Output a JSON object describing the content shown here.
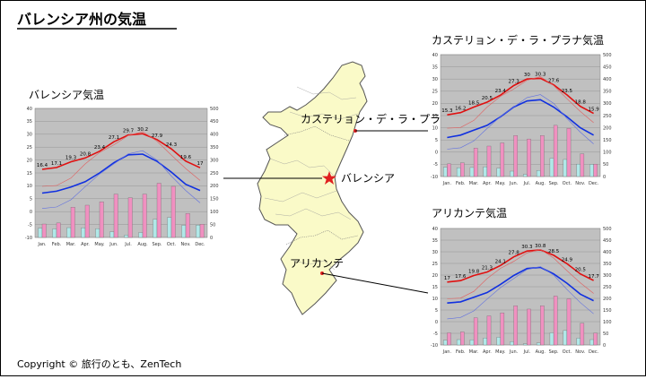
{
  "page": {
    "title": "バレンシア州の気温",
    "copyright": "Copyright © 旅行のとも、ZenTech"
  },
  "map": {
    "places": [
      {
        "name": "カステリョン・デ・ラ・プラナ",
        "marker": "dot"
      },
      {
        "name": "バレンシア",
        "marker": "star"
      },
      {
        "name": "アリカンテ",
        "marker": "dot"
      }
    ],
    "colors": {
      "land": "#fafac8",
      "border": "#606060",
      "marker": "#e02020"
    }
  },
  "chart_data": [
    {
      "type": "line+bar",
      "title": "バレンシア気温",
      "categories": [
        "Jan.",
        "Feb.",
        "Mar.",
        "Apr.",
        "May.",
        "Jun.",
        "Jul.",
        "Aug.",
        "Sep.",
        "Oct.",
        "Nov.",
        "Dec."
      ],
      "ylim": [
        -10,
        40
      ],
      "y_ticks": [
        -10,
        -5,
        0,
        5,
        10,
        15,
        20,
        25,
        30,
        35,
        40
      ],
      "y2lim": [
        0,
        500
      ],
      "y2_ticks": [
        0,
        50,
        100,
        150,
        200,
        250,
        300,
        350,
        400,
        450,
        500
      ],
      "series": [
        {
          "name": "max",
          "color": "#e01010",
          "values": [
            16.4,
            17.1,
            19.3,
            20.8,
            23.4,
            27.1,
            29.7,
            30.2,
            27.9,
            24.3,
            19.6,
            17.0
          ],
          "labels": [
            "16.4",
            "17.1",
            "19.3",
            "20.8",
            "23.4",
            "27.1",
            "29.7",
            "30.2",
            "27.9",
            "24.3",
            "19.6",
            "17"
          ]
        },
        {
          "name": "tokyo-max",
          "color": "#e06060",
          "values": [
            9.8,
            10.1,
            13.0,
            18.5,
            22.9,
            25.9,
            29.5,
            31.0,
            27.3,
            21.9,
            16.7,
            12.1
          ]
        },
        {
          "name": "avg",
          "color": "#1030e0",
          "values": [
            7.2,
            7.9,
            9.5,
            11.6,
            15.0,
            19.0,
            22.0,
            22.3,
            19.5,
            15.3,
            10.6,
            8.2
          ]
        },
        {
          "name": "tokyo-avg",
          "color": "#6070e0",
          "values": [
            1.2,
            1.8,
            4.6,
            9.7,
            14.6,
            18.5,
            22.4,
            23.6,
            20.0,
            13.8,
            8.2,
            3.4
          ]
        }
      ],
      "bars": [
        {
          "name": "precip",
          "color": "#b0e8e8",
          "values": [
            36,
            33,
            38,
            37,
            34,
            22,
            9,
            19,
            70,
            77,
            47,
            48
          ]
        },
        {
          "name": "precip-valencia",
          "color": "#f090c0",
          "values": [
            52,
            56,
            117,
            125,
            138,
            168,
            154,
            168,
            210,
            198,
            93,
            51
          ]
        }
      ]
    },
    {
      "type": "line+bar",
      "title": "カステリョン・デ・ラ・プラナ気温",
      "categories": [
        "Jan.",
        "Feb.",
        "Mar.",
        "Apr.",
        "May.",
        "Jun.",
        "Jul.",
        "Aug.",
        "Sep.",
        "Oct.",
        "Nov.",
        "Dec."
      ],
      "ylim": [
        -10,
        40
      ],
      "y_ticks": [
        -10,
        -5,
        0,
        5,
        10,
        15,
        20,
        25,
        30,
        35,
        40
      ],
      "y2lim": [
        0,
        500
      ],
      "y2_ticks": [
        0,
        50,
        100,
        150,
        200,
        250,
        300,
        350,
        400,
        450,
        500
      ],
      "series": [
        {
          "name": "max",
          "color": "#e01010",
          "values": [
            15.3,
            16.2,
            18.5,
            20.5,
            23.4,
            27.3,
            30.0,
            30.3,
            27.6,
            23.5,
            18.8,
            15.9
          ],
          "labels": [
            "15.3",
            "16.2",
            "18.5",
            "20.5",
            "23.4",
            "27.3",
            "30",
            "30.3",
            "27.6",
            "23.5",
            "18.8",
            "15.9"
          ]
        },
        {
          "name": "tokyo-max",
          "color": "#e06060",
          "values": [
            9.8,
            10.1,
            13.0,
            18.5,
            22.9,
            25.9,
            29.5,
            31.0,
            27.3,
            21.9,
            16.7,
            12.1
          ]
        },
        {
          "name": "avg",
          "color": "#1030e0",
          "values": [
            6.0,
            7.0,
            9.0,
            11.0,
            14.5,
            18.5,
            21.0,
            21.5,
            18.5,
            14.5,
            10.0,
            7.0
          ]
        },
        {
          "name": "tokyo-avg",
          "color": "#6070e0",
          "values": [
            1.2,
            1.8,
            4.6,
            9.7,
            14.6,
            18.5,
            22.4,
            23.6,
            20.0,
            13.8,
            8.2,
            3.4
          ]
        }
      ],
      "bars": [
        {
          "name": "precip",
          "color": "#b0e8e8",
          "values": [
            38,
            36,
            37,
            40,
            34,
            22,
            9,
            25,
            75,
            70,
            51,
            50
          ]
        },
        {
          "name": "precip-valencia",
          "color": "#f090c0",
          "values": [
            52,
            56,
            117,
            125,
            138,
            168,
            154,
            168,
            210,
            198,
            93,
            51
          ]
        }
      ]
    },
    {
      "type": "line+bar",
      "title": "アリカンテ気温",
      "categories": [
        "Jan.",
        "Feb.",
        "Mar.",
        "Apr.",
        "May.",
        "Jun.",
        "Jul.",
        "Aug.",
        "Sep.",
        "Oct.",
        "Nov.",
        "Dec."
      ],
      "ylim": [
        -10,
        40
      ],
      "y_ticks": [
        -10,
        -5,
        0,
        5,
        10,
        15,
        20,
        25,
        30,
        35,
        40
      ],
      "y2lim": [
        0,
        500
      ],
      "y2_ticks": [
        0,
        50,
        100,
        150,
        200,
        250,
        300,
        350,
        400,
        450,
        500
      ],
      "series": [
        {
          "name": "max",
          "color": "#e01010",
          "values": [
            17.0,
            17.6,
            19.8,
            21.3,
            24.1,
            27.8,
            30.3,
            30.8,
            28.5,
            24.9,
            20.5,
            17.7
          ],
          "labels": [
            "17",
            "17.6",
            "19.8",
            "21.3",
            "24.1",
            "27.8",
            "30.3",
            "30.8",
            "28.5",
            "24.9",
            "20.5",
            "17.7"
          ]
        },
        {
          "name": "tokyo-max",
          "color": "#e06060",
          "values": [
            9.8,
            10.1,
            13.0,
            18.5,
            22.9,
            25.9,
            29.5,
            31.0,
            27.3,
            21.9,
            16.7,
            12.1
          ]
        },
        {
          "name": "avg",
          "color": "#1030e0",
          "values": [
            8.0,
            8.5,
            10.5,
            12.5,
            16.0,
            19.8,
            22.8,
            23.3,
            20.5,
            16.5,
            11.8,
            9.0
          ]
        },
        {
          "name": "tokyo-avg",
          "color": "#6070e0",
          "values": [
            1.2,
            1.8,
            4.6,
            9.7,
            14.6,
            18.5,
            22.4,
            23.6,
            20.0,
            13.8,
            8.2,
            3.4
          ]
        }
      ],
      "bars": [
        {
          "name": "precip",
          "color": "#b0e8e8",
          "values": [
            20,
            23,
            22,
            30,
            33,
            14,
            5,
            9,
            52,
            62,
            29,
            23
          ]
        },
        {
          "name": "precip-valencia",
          "color": "#f090c0",
          "values": [
            52,
            56,
            117,
            125,
            138,
            168,
            154,
            168,
            210,
            198,
            93,
            51
          ]
        }
      ]
    }
  ]
}
